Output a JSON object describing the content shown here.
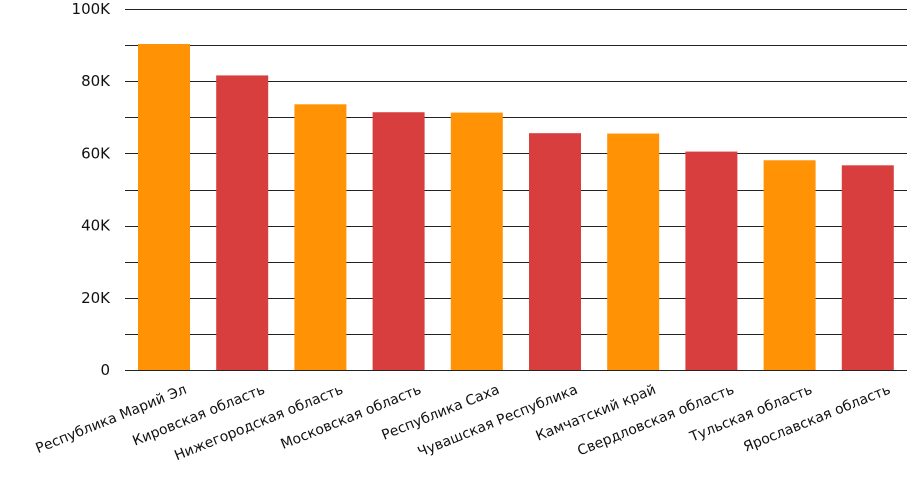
{
  "chart_data": {
    "type": "bar",
    "title": "",
    "xlabel": "",
    "ylabel": "",
    "categories": [
      "Республика Марий Эл",
      "Кировская область",
      "Нижегородская область",
      "Московская область",
      "Республика Саха",
      "Чувашская Республика",
      "Камчатский край",
      "Свердловская область",
      "Тульская область",
      "Ярославская область"
    ],
    "values": [
      90300,
      81600,
      73600,
      71400,
      71300,
      65600,
      65500,
      60500,
      58100,
      56700
    ],
    "bar_colors": [
      "#FF9305",
      "#D83E3E",
      "#FF9305",
      "#D83E3E",
      "#FF9305",
      "#D83E3E",
      "#FF9305",
      "#D83E3E",
      "#FF9305",
      "#D83E3E"
    ],
    "ylim": [
      0,
      100000
    ],
    "y_ticks": [
      0,
      20000,
      40000,
      60000,
      80000,
      100000
    ],
    "y_tick_labels": [
      "0",
      "20K",
      "40K",
      "60K",
      "80K",
      "100K"
    ],
    "minor_gridlines_every": 10000,
    "grid": true,
    "legend": "none"
  }
}
